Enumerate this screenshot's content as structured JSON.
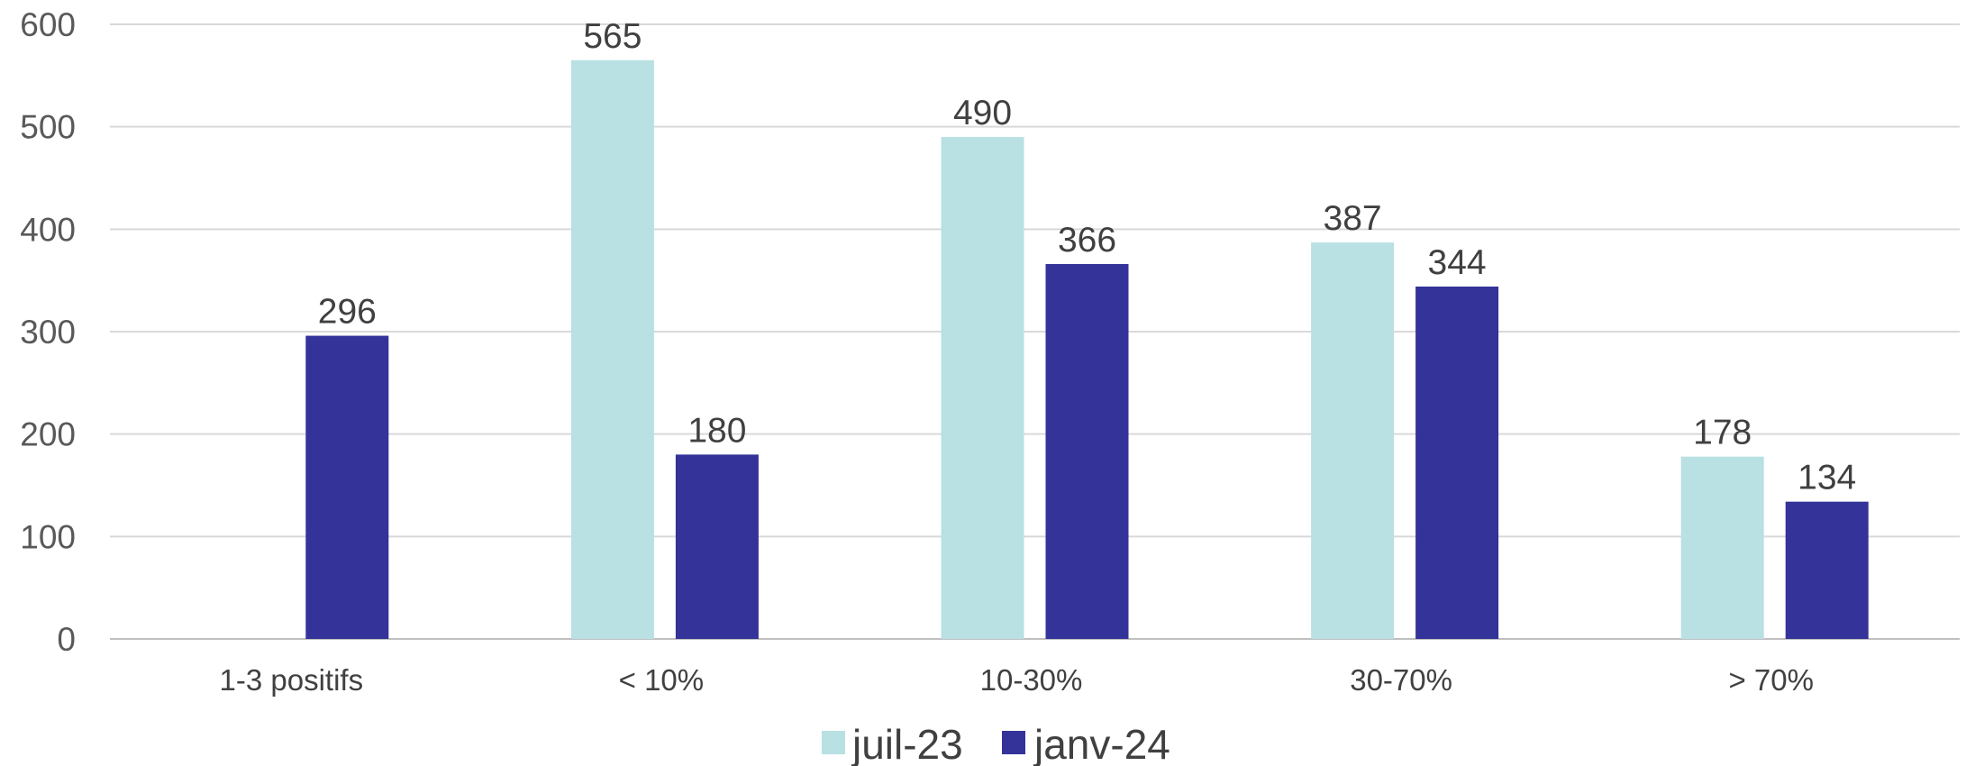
{
  "chart_data": {
    "type": "bar",
    "title": "",
    "xlabel": "",
    "ylabel": "",
    "ylim": [
      0,
      600
    ],
    "yticks": [
      "0",
      "100",
      "200",
      "300",
      "400",
      "500",
      "600"
    ],
    "grid": true,
    "legend_position": "bottom",
    "categories": [
      "1-3 positifs",
      "< 10%",
      "10-30%",
      "30-70%",
      "> 70%"
    ],
    "series": [
      {
        "name": "juil-23",
        "color": "#b9e0e3",
        "values": [
          null,
          565,
          490,
          387,
          178
        ]
      },
      {
        "name": "janv-24",
        "color": "#333399",
        "values": [
          296,
          180,
          366,
          344,
          134
        ]
      }
    ]
  }
}
